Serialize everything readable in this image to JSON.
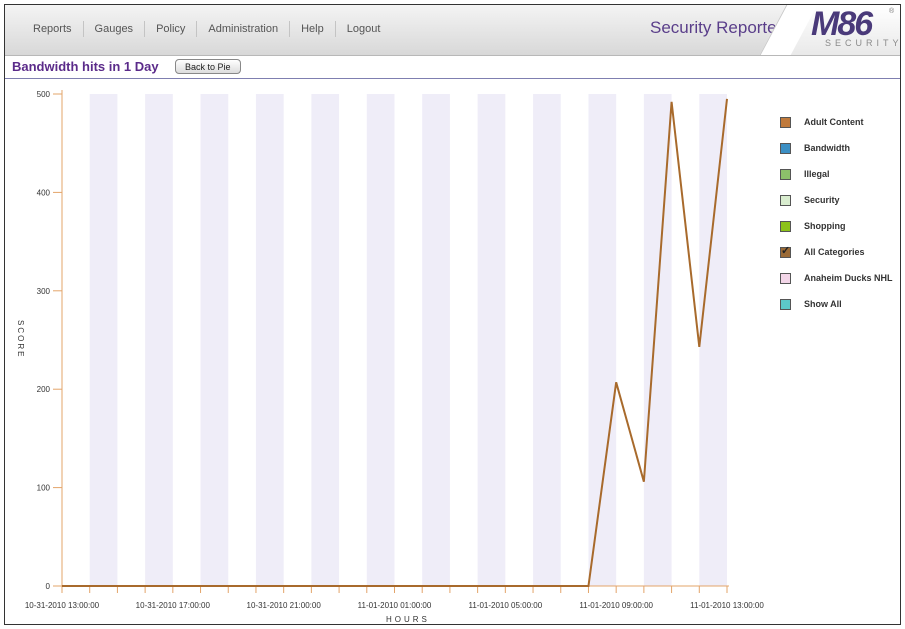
{
  "nav": {
    "items": [
      "Reports",
      "Gauges",
      "Policy",
      "Administration",
      "Help",
      "Logout"
    ]
  },
  "app_title": "Security Reporter",
  "logo": {
    "main": "M86",
    "sub": "SECURITY",
    "reg": "®"
  },
  "page": {
    "subtitle": "Bandwidth hits in 1 Day",
    "back_button": "Back to Pie"
  },
  "legend": [
    {
      "label": "Adult Content",
      "color": "#c07a3c",
      "checked": false
    },
    {
      "label": "Bandwidth",
      "color": "#3b8fc4",
      "checked": false
    },
    {
      "label": "Illegal",
      "color": "#8cc06a",
      "checked": false
    },
    {
      "label": "Security",
      "color": "#d9edcf",
      "checked": false
    },
    {
      "label": "Shopping",
      "color": "#8cc21a",
      "checked": false
    },
    {
      "label": "All Categories",
      "color": "#9a6a36",
      "checked": true
    },
    {
      "label": "Anaheim Ducks NHL",
      "color": "#f3d6e8",
      "checked": false
    },
    {
      "label": "Show All",
      "color": "#5cc8c8",
      "checked": false
    }
  ],
  "chart_data": {
    "type": "line",
    "xlabel": "HOURS",
    "ylabel": "SCORE",
    "ylim": [
      0,
      500
    ],
    "yticks": [
      0,
      100,
      200,
      300,
      400,
      500
    ],
    "x_tick_labels": [
      "10-31-2010 13:00:00",
      "10-31-2010 17:00:00",
      "10-31-2010 21:00:00",
      "11-01-2010 01:00:00",
      "11-01-2010 05:00:00",
      "11-01-2010 09:00:00",
      "11-01-2010 13:00:00"
    ],
    "x_hours": [
      "10-31-2010 13:00",
      "10-31-2010 14:00",
      "10-31-2010 15:00",
      "10-31-2010 16:00",
      "10-31-2010 17:00",
      "10-31-2010 18:00",
      "10-31-2010 19:00",
      "10-31-2010 20:00",
      "10-31-2010 21:00",
      "10-31-2010 22:00",
      "10-31-2010 23:00",
      "11-01-2010 00:00",
      "11-01-2010 01:00",
      "11-01-2010 02:00",
      "11-01-2010 03:00",
      "11-01-2010 04:00",
      "11-01-2010 05:00",
      "11-01-2010 06:00",
      "11-01-2010 07:00",
      "11-01-2010 08:00",
      "11-01-2010 09:00",
      "11-01-2010 10:00",
      "11-01-2010 11:00",
      "11-01-2010 12:00",
      "11-01-2010 13:00"
    ],
    "series": [
      {
        "color": "#a86a2c",
        "values": [
          0,
          0,
          0,
          0,
          0,
          0,
          0,
          0,
          0,
          0,
          0,
          0,
          0,
          0,
          0,
          0,
          0,
          0,
          0,
          0,
          207,
          106,
          492,
          243,
          495
        ]
      }
    ],
    "grid": "alternating vertical bands",
    "legend_position": "right"
  }
}
